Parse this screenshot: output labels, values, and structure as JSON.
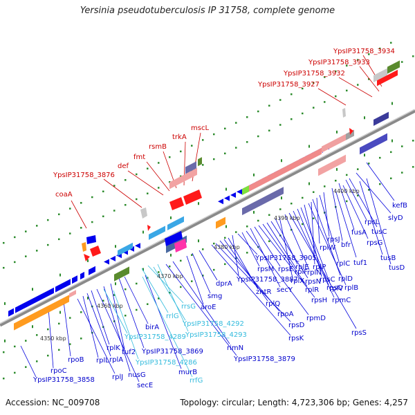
{
  "header": {
    "title": "Yersinia pseudotuberculosis IP 31758, complete genome"
  },
  "footer": {
    "accession": "Accession: NC_009708",
    "stats": "Topology: circular; Length: 4,723,306 bp; Genes: 4,257"
  },
  "colors": {
    "red_labels": "#cc0000",
    "blue_labels": "#0000cc",
    "cyan_labels": "#33bbdd",
    "axis": "#888888",
    "forward_gene": "#0000ee",
    "reverse_gene": "#ee0000"
  },
  "scale": {
    "ticks": [
      "4350 kbp",
      "4360 kbp",
      "4370 kbp",
      "4380 kbp",
      "4390 kbp",
      "4400 kbp"
    ]
  },
  "labels": {
    "red": [
      "YpsIP31758_3934",
      "YpsIP31758_3933",
      "YpsIP31758_3932",
      "YpsIP31758_3927",
      "mscL",
      "trkA",
      "rsmB",
      "fmt",
      "def",
      "YpsIP31758_3876",
      "coaA"
    ],
    "blue": [
      "kefB",
      "slyD",
      "tusC",
      "rpsL",
      "tusB",
      "tusD",
      "fusA",
      "rpsG",
      "bfr",
      "tuf1",
      "rpsJ",
      "rplC",
      "rplW",
      "rplD",
      "rplP",
      "rplB",
      "rpsC",
      "rplV",
      "rpsQ",
      "rpmC",
      "rpsS",
      "rplN",
      "rplX",
      "rplE",
      "rpsN",
      "rplF",
      "rplR",
      "rpsH",
      "rpsE",
      "secY",
      "rpmD",
      "rpsM",
      "YpsIP31758_3905",
      "YpsIP31758_3887",
      "zntR",
      "rplQ",
      "rpoA",
      "rpsD",
      "rpsK",
      "dprA",
      "smg",
      "aroE",
      "rimN",
      "YpsIP31758_3879",
      "murB",
      "birA",
      "YpsIP31758_3869",
      "tuf2",
      "nusG",
      "secE",
      "rplK",
      "rplA",
      "rplL",
      "rplJ",
      "rpoB",
      "rpoC",
      "YpsIP31758_3858"
    ],
    "cyan": [
      "rrsG",
      "rrlG",
      "YpsIP31758_4292",
      "YpsIP31758_4293",
      "YpsIP31758_4289",
      "YpsIP31758_4286",
      "rrfG"
    ]
  }
}
